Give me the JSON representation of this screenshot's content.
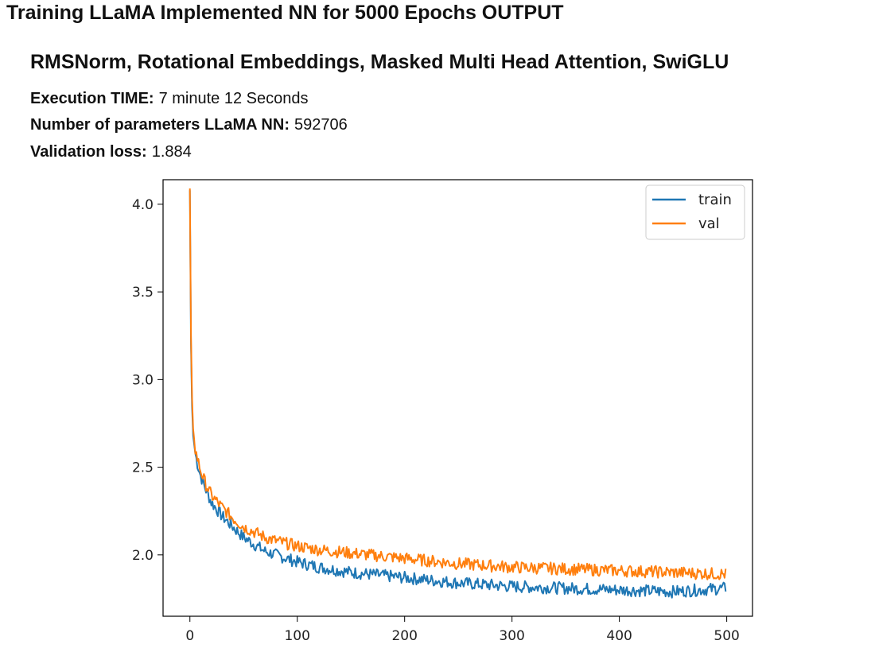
{
  "header": {
    "title": "Training LLaMA Implemented NN for 5000 Epochs OUTPUT",
    "subtitle": "RMSNorm, Rotational Embeddings, Masked Multi Head Attention, SwiGLU"
  },
  "stats": [
    {
      "label": "Execution TIME:",
      "value": "7 minute 12 Seconds"
    },
    {
      "label": "Number of parameters LLaMA NN:",
      "value": "592706"
    },
    {
      "label": "Validation loss:",
      "value": "1.884"
    }
  ],
  "colors": {
    "train": "#1f77b4",
    "val": "#ff7f0e"
  },
  "chart_data": {
    "type": "line",
    "title": "",
    "xlabel": "",
    "ylabel": "",
    "xlim": [
      -25,
      524
    ],
    "ylim": [
      1.65,
      4.14
    ],
    "xticks": [
      0,
      100,
      200,
      300,
      400,
      500
    ],
    "xtick_labels": [
      "0",
      "100",
      "200",
      "300",
      "400",
      "500"
    ],
    "yticks": [
      2.0,
      2.5,
      3.0,
      3.5,
      4.0
    ],
    "ytick_labels": [
      "2.0",
      "2.5",
      "3.0",
      "3.5",
      "4.0"
    ],
    "grid": false,
    "legend": "top-right",
    "series": [
      {
        "name": "train",
        "color": "#1f77b4",
        "x": [
          0,
          1,
          2,
          3,
          5,
          7,
          10,
          15,
          20,
          30,
          40,
          50,
          60,
          70,
          80,
          100,
          120,
          150,
          200,
          250,
          300,
          350,
          400,
          450,
          499
        ],
        "y": [
          4.08,
          3.2,
          2.85,
          2.68,
          2.58,
          2.52,
          2.45,
          2.37,
          2.3,
          2.22,
          2.16,
          2.1,
          2.06,
          2.02,
          2.0,
          1.96,
          1.93,
          1.9,
          1.87,
          1.84,
          1.82,
          1.81,
          1.8,
          1.79,
          1.81
        ]
      },
      {
        "name": "val",
        "color": "#ff7f0e",
        "x": [
          0,
          1,
          2,
          3,
          5,
          7,
          10,
          15,
          20,
          30,
          40,
          50,
          60,
          70,
          80,
          100,
          120,
          150,
          200,
          250,
          300,
          350,
          400,
          450,
          499
        ],
        "y": [
          4.09,
          3.25,
          2.9,
          2.72,
          2.6,
          2.55,
          2.48,
          2.4,
          2.34,
          2.27,
          2.21,
          2.16,
          2.13,
          2.1,
          2.08,
          2.05,
          2.03,
          2.01,
          1.98,
          1.95,
          1.93,
          1.92,
          1.91,
          1.9,
          1.89
        ]
      }
    ]
  }
}
